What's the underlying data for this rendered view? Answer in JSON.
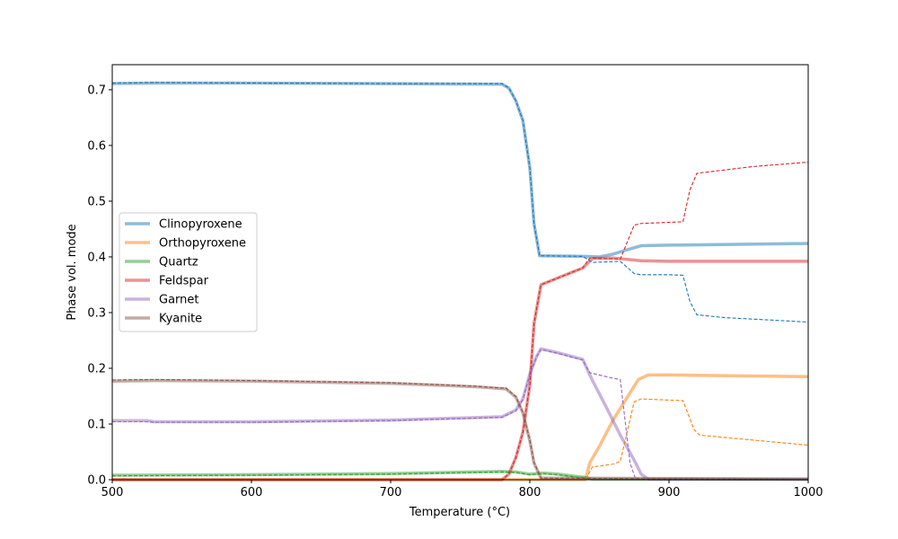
{
  "chart_data": {
    "type": "line",
    "title": "",
    "xlabel": "Temperature (°C)",
    "ylabel": "Phase vol. mode",
    "xlim": [
      500,
      1000
    ],
    "ylim": [
      0,
      0.745
    ],
    "xticks": [
      500,
      600,
      700,
      800,
      900,
      1000
    ],
    "xtick_labels": [
      "500",
      "600",
      "700",
      "800",
      "900",
      "1000"
    ],
    "yticks": [
      0.0,
      0.1,
      0.2,
      0.3,
      0.4,
      0.5,
      0.6,
      0.7
    ],
    "ytick_labels": [
      "0.0",
      "0.1",
      "0.2",
      "0.3",
      "0.4",
      "0.5",
      "0.6",
      "0.7"
    ],
    "grid": false,
    "legend_position": "center-left",
    "series": [
      {
        "name": "Clinopyroxene",
        "color": "#1f77b4",
        "style": "thick",
        "points": [
          [
            500,
            0.711
          ],
          [
            530,
            0.712
          ],
          [
            600,
            0.712
          ],
          [
            700,
            0.711
          ],
          [
            780,
            0.71
          ],
          [
            785,
            0.703
          ],
          [
            790,
            0.68
          ],
          [
            795,
            0.645
          ],
          [
            800,
            0.56
          ],
          [
            803,
            0.46
          ],
          [
            807,
            0.402
          ],
          [
            840,
            0.401
          ],
          [
            850,
            0.4
          ],
          [
            860,
            0.405
          ],
          [
            870,
            0.413
          ],
          [
            880,
            0.42
          ],
          [
            900,
            0.421
          ],
          [
            1000,
            0.424
          ]
        ]
      },
      {
        "name": "Orthopyroxene",
        "color": "#ff7f0e",
        "style": "thick",
        "points": [
          [
            500,
            0.0
          ],
          [
            840,
            0.0
          ],
          [
            843,
            0.03
          ],
          [
            850,
            0.06
          ],
          [
            860,
            0.108
          ],
          [
            870,
            0.148
          ],
          [
            878,
            0.18
          ],
          [
            885,
            0.188
          ],
          [
            900,
            0.188
          ],
          [
            1000,
            0.185
          ]
        ]
      },
      {
        "name": "Quartz",
        "color": "#2ca02c",
        "style": "thick",
        "points": [
          [
            500,
            0.008
          ],
          [
            600,
            0.009
          ],
          [
            700,
            0.011
          ],
          [
            780,
            0.015
          ],
          [
            790,
            0.014
          ],
          [
            800,
            0.01
          ],
          [
            810,
            0.012
          ],
          [
            820,
            0.01
          ],
          [
            840,
            0.004
          ],
          [
            845,
            0.001
          ],
          [
            1000,
            0.001
          ]
        ]
      },
      {
        "name": "Feldspar",
        "color": "#d62728",
        "style": "thick",
        "points": [
          [
            500,
            0.0
          ],
          [
            780,
            0.0
          ],
          [
            785,
            0.01
          ],
          [
            790,
            0.04
          ],
          [
            795,
            0.085
          ],
          [
            800,
            0.17
          ],
          [
            803,
            0.28
          ],
          [
            808,
            0.35
          ],
          [
            820,
            0.362
          ],
          [
            838,
            0.38
          ],
          [
            845,
            0.397
          ],
          [
            860,
            0.398
          ],
          [
            880,
            0.393
          ],
          [
            900,
            0.392
          ],
          [
            1000,
            0.392
          ]
        ]
      },
      {
        "name": "Garnet",
        "color": "#9467bd",
        "style": "thick",
        "points": [
          [
            500,
            0.106
          ],
          [
            525,
            0.106
          ],
          [
            530,
            0.104
          ],
          [
            600,
            0.104
          ],
          [
            700,
            0.107
          ],
          [
            780,
            0.113
          ],
          [
            790,
            0.125
          ],
          [
            795,
            0.145
          ],
          [
            800,
            0.19
          ],
          [
            805,
            0.222
          ],
          [
            808,
            0.235
          ],
          [
            820,
            0.228
          ],
          [
            838,
            0.216
          ],
          [
            845,
            0.178
          ],
          [
            855,
            0.13
          ],
          [
            865,
            0.08
          ],
          [
            875,
            0.035
          ],
          [
            880,
            0.01
          ],
          [
            885,
            0.001
          ],
          [
            1000,
            0.001
          ]
        ]
      },
      {
        "name": "Kyanite",
        "color": "#8c564b",
        "style": "thick",
        "points": [
          [
            500,
            0.177
          ],
          [
            530,
            0.178
          ],
          [
            600,
            0.177
          ],
          [
            700,
            0.173
          ],
          [
            760,
            0.167
          ],
          [
            783,
            0.163
          ],
          [
            790,
            0.148
          ],
          [
            795,
            0.12
          ],
          [
            800,
            0.07
          ],
          [
            803,
            0.03
          ],
          [
            808,
            0.003
          ],
          [
            1000,
            0.001
          ]
        ]
      },
      {
        "name": "",
        "color": "#1f77b4",
        "style": "dashed",
        "points": [
          [
            500,
            0.712
          ],
          [
            530,
            0.713
          ],
          [
            600,
            0.712
          ],
          [
            700,
            0.711
          ],
          [
            780,
            0.711
          ],
          [
            785,
            0.703
          ],
          [
            790,
            0.68
          ],
          [
            795,
            0.645
          ],
          [
            800,
            0.56
          ],
          [
            803,
            0.46
          ],
          [
            807,
            0.402
          ],
          [
            838,
            0.401
          ],
          [
            845,
            0.39
          ],
          [
            865,
            0.392
          ],
          [
            875,
            0.37
          ],
          [
            880,
            0.368
          ],
          [
            900,
            0.368
          ],
          [
            910,
            0.367
          ],
          [
            915,
            0.32
          ],
          [
            920,
            0.296
          ],
          [
            940,
            0.291
          ],
          [
            1000,
            0.283
          ]
        ]
      },
      {
        "name": "",
        "color": "#ff7f0e",
        "style": "dashed",
        "points": [
          [
            500,
            0.0
          ],
          [
            840,
            0.0
          ],
          [
            845,
            0.023
          ],
          [
            860,
            0.028
          ],
          [
            865,
            0.033
          ],
          [
            875,
            0.14
          ],
          [
            880,
            0.145
          ],
          [
            900,
            0.143
          ],
          [
            910,
            0.142
          ],
          [
            918,
            0.09
          ],
          [
            922,
            0.08
          ],
          [
            1000,
            0.062
          ]
        ]
      },
      {
        "name": "",
        "color": "#2ca02c",
        "style": "dashed",
        "points": [
          [
            500,
            0.007
          ],
          [
            600,
            0.008
          ],
          [
            700,
            0.01
          ],
          [
            780,
            0.014
          ],
          [
            790,
            0.013
          ],
          [
            800,
            0.009
          ],
          [
            810,
            0.011
          ],
          [
            820,
            0.009
          ],
          [
            840,
            0.003
          ],
          [
            845,
            0.0
          ],
          [
            1000,
            0.0
          ]
        ]
      },
      {
        "name": "",
        "color": "#d62728",
        "style": "dashed",
        "points": [
          [
            500,
            0.0
          ],
          [
            780,
            0.0
          ],
          [
            785,
            0.01
          ],
          [
            790,
            0.04
          ],
          [
            795,
            0.085
          ],
          [
            800,
            0.17
          ],
          [
            803,
            0.28
          ],
          [
            808,
            0.35
          ],
          [
            820,
            0.362
          ],
          [
            838,
            0.38
          ],
          [
            843,
            0.398
          ],
          [
            865,
            0.396
          ],
          [
            875,
            0.457
          ],
          [
            880,
            0.46
          ],
          [
            910,
            0.463
          ],
          [
            915,
            0.52
          ],
          [
            920,
            0.55
          ],
          [
            960,
            0.562
          ],
          [
            1000,
            0.57
          ]
        ]
      },
      {
        "name": "",
        "color": "#9467bd",
        "style": "dashed",
        "points": [
          [
            500,
            0.104
          ],
          [
            525,
            0.104
          ],
          [
            530,
            0.103
          ],
          [
            600,
            0.103
          ],
          [
            700,
            0.106
          ],
          [
            780,
            0.112
          ],
          [
            790,
            0.124
          ],
          [
            795,
            0.144
          ],
          [
            800,
            0.189
          ],
          [
            805,
            0.221
          ],
          [
            808,
            0.234
          ],
          [
            820,
            0.227
          ],
          [
            838,
            0.215
          ],
          [
            843,
            0.192
          ],
          [
            860,
            0.182
          ],
          [
            865,
            0.18
          ],
          [
            872,
            0.03
          ],
          [
            876,
            0.001
          ],
          [
            1000,
            0.0
          ]
        ]
      },
      {
        "name": "",
        "color": "#8c564b",
        "style": "dashed",
        "points": [
          [
            500,
            0.179
          ],
          [
            530,
            0.18
          ],
          [
            600,
            0.178
          ],
          [
            700,
            0.174
          ],
          [
            760,
            0.168
          ],
          [
            783,
            0.164
          ],
          [
            790,
            0.149
          ],
          [
            795,
            0.121
          ],
          [
            800,
            0.071
          ],
          [
            803,
            0.031
          ],
          [
            808,
            0.003
          ],
          [
            1000,
            0.0
          ]
        ]
      }
    ]
  }
}
